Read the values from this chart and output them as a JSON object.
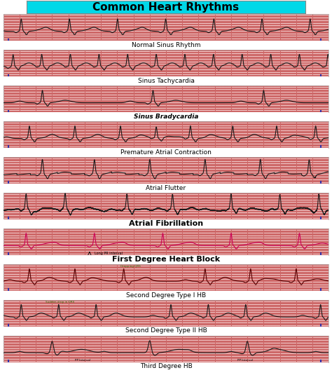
{
  "title": "Common Heart Rhythms",
  "title_bg": "#00d8e8",
  "title_fontsize": 11,
  "rhythms": [
    "Normal Sinus Rhythm",
    "Sinus Tachycardia",
    "Sinus Bradycardia",
    "Premature Atrial Contraction",
    "Atrial Flutter",
    "Atrial Fibrillation",
    "First Degree Heart Block",
    "Second Degree Type I HB",
    "Second Degree Type II HB",
    "Third Degree HB"
  ],
  "rhythm_label_styles": [
    {
      "bold": false,
      "italic": false,
      "size": 6.5
    },
    {
      "bold": false,
      "italic": false,
      "size": 6.5
    },
    {
      "bold": true,
      "italic": true,
      "size": 6.5
    },
    {
      "bold": false,
      "italic": false,
      "size": 6.5
    },
    {
      "bold": false,
      "italic": false,
      "size": 6.5
    },
    {
      "bold": true,
      "italic": false,
      "size": 8.0
    },
    {
      "bold": true,
      "italic": false,
      "size": 8.0
    },
    {
      "bold": false,
      "italic": false,
      "size": 6.5
    },
    {
      "bold": false,
      "italic": false,
      "size": 6.5
    },
    {
      "bold": false,
      "italic": false,
      "size": 6.5
    }
  ],
  "grid_bg": "#fce8e8",
  "grid_major_color": "#cc6666",
  "grid_minor_color": "#f0c0c0",
  "ecg_color_dark": "#1a1a1a",
  "ecg_color_pink": "#cc0055",
  "ecg_color_darkred": "#550000",
  "white_bg": "#ffffff",
  "tick_color": "#3333aa"
}
